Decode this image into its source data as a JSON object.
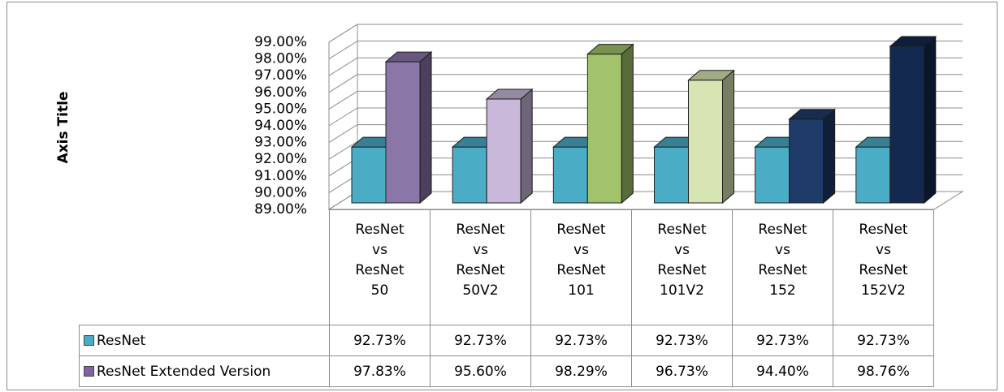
{
  "chart_data": {
    "type": "bar",
    "y_axis_title": "Axis Title",
    "categories": [
      "ResNet vs ResNet50",
      "ResNet vs ResNet50V2",
      "ResNet vs ResNet101",
      "ResNet vs ResNet101V2",
      "ResNet vs ResNet152",
      "ResNet vs ResNet152V2"
    ],
    "series": [
      {
        "name": "ResNet",
        "color": "#4bacc6",
        "values": [
          92.73,
          92.73,
          92.73,
          92.73,
          92.73,
          92.73
        ],
        "value_labels": [
          "92.73%",
          "92.73%",
          "92.73%",
          "92.73%",
          "92.73%",
          "92.73%"
        ]
      },
      {
        "name": "ResNet Extended Version",
        "color": "#8064a2",
        "colors": [
          "#8b76a8",
          "#c9b8da",
          "#a2c26c",
          "#d7e5b2",
          "#1f3b68",
          "#13294f"
        ],
        "values": [
          97.83,
          95.6,
          98.29,
          96.73,
          94.4,
          98.76
        ],
        "value_labels": [
          "97.83%",
          "95.60%",
          "98.29%",
          "96.73%",
          "94.40%",
          "98.76%"
        ]
      }
    ],
    "ylim": [
      89,
      99
    ],
    "yticks": [
      {
        "value": 89,
        "label": "89.00%"
      },
      {
        "value": 90,
        "label": "90.00%"
      },
      {
        "value": 91,
        "label": "91.00%"
      },
      {
        "value": 92,
        "label": "92.00%"
      },
      {
        "value": 93,
        "label": "93.00%"
      },
      {
        "value": 94,
        "label": "94.00%"
      },
      {
        "value": 95,
        "label": "95.00%"
      },
      {
        "value": 96,
        "label": "96.00%"
      },
      {
        "value": 97,
        "label": "97.00%"
      },
      {
        "value": 98,
        "label": "98.00%"
      },
      {
        "value": 99,
        "label": "99.00%"
      }
    ],
    "grid": true,
    "data_table": true
  }
}
